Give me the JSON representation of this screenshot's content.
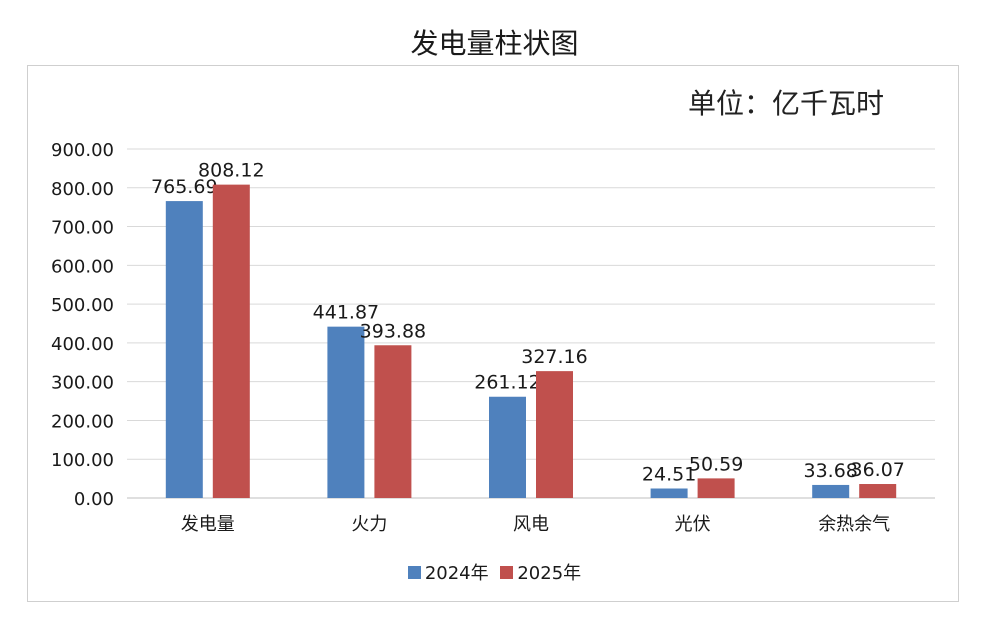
{
  "chart_data": {
    "type": "bar",
    "title": "发电量柱状图",
    "unit_label": "单位：亿千瓦时",
    "categories": [
      "发电量",
      "火力",
      "风电",
      "光伏",
      "余热余气"
    ],
    "series": [
      {
        "name": "2024年",
        "color": "#4f81bd",
        "values": [
          765.69,
          441.87,
          261.12,
          24.51,
          33.68
        ]
      },
      {
        "name": "2025年",
        "color": "#c0504d",
        "values": [
          808.12,
          393.88,
          327.16,
          50.59,
          36.07
        ]
      }
    ],
    "data_labels": [
      [
        "765.69",
        "441.87",
        "261.12",
        "24.51",
        "33.68"
      ],
      [
        "808.12",
        "393.88",
        "327.16",
        "50.59",
        "36.07"
      ]
    ],
    "yticks": [
      "0.00",
      "100.00",
      "200.00",
      "300.00",
      "400.00",
      "500.00",
      "600.00",
      "700.00",
      "800.00",
      "900.00"
    ],
    "ylim": [
      0,
      900
    ],
    "grid": true,
    "legend_position": "bottom"
  }
}
